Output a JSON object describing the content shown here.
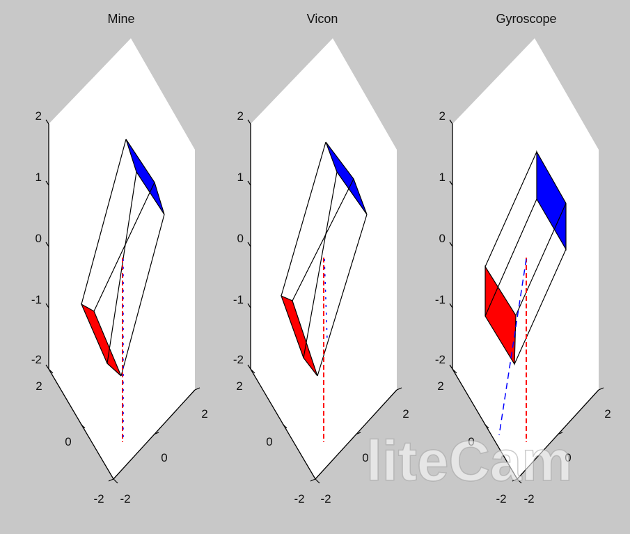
{
  "colors": {
    "figure_background": "#c8c8c8",
    "axes_background": "#ffffff",
    "top_face": "#0000ff",
    "bottom_face": "#ff0000",
    "edge": "#000000",
    "dashed_red": "#ff0000",
    "dashed_blue": "#0000ff"
  },
  "watermark": "liteCam",
  "chart_data": [
    {
      "type": "3d-box",
      "title": "Mine",
      "zticks": [
        "2",
        "1",
        "0",
        "-1",
        "-2"
      ],
      "yticks": [
        "2",
        "0",
        "-2"
      ],
      "xticks": [
        "2",
        "0",
        "-2"
      ],
      "xlim": [
        -2,
        2
      ],
      "ylim": [
        -2,
        2
      ],
      "zlim": [
        -2,
        2
      ],
      "grid": false,
      "orientation_line_red": "dashed",
      "orientation_line_blue": "dashed"
    },
    {
      "type": "3d-box",
      "title": "Vicon",
      "zticks": [
        "2",
        "1",
        "0",
        "-1",
        "-2"
      ],
      "yticks": [
        "2",
        "0",
        "-2"
      ],
      "xticks": [
        "2",
        "0",
        "-2"
      ],
      "xlim": [
        -2,
        2
      ],
      "ylim": [
        -2,
        2
      ],
      "zlim": [
        -2,
        2
      ],
      "grid": false,
      "orientation_line_red": "dashed",
      "orientation_line_blue": "dashed"
    },
    {
      "type": "3d-box",
      "title": "Gyroscope",
      "zticks": [
        "2",
        "1",
        "0",
        "-1",
        "-2"
      ],
      "yticks": [
        "2",
        "0",
        "-2"
      ],
      "xticks": [
        "2",
        "0",
        "-2"
      ],
      "xlim": [
        -2,
        2
      ],
      "ylim": [
        -2,
        2
      ],
      "zlim": [
        -2,
        2
      ],
      "grid": false,
      "orientation_line_red": "dashed",
      "orientation_line_blue": "dashed"
    }
  ]
}
